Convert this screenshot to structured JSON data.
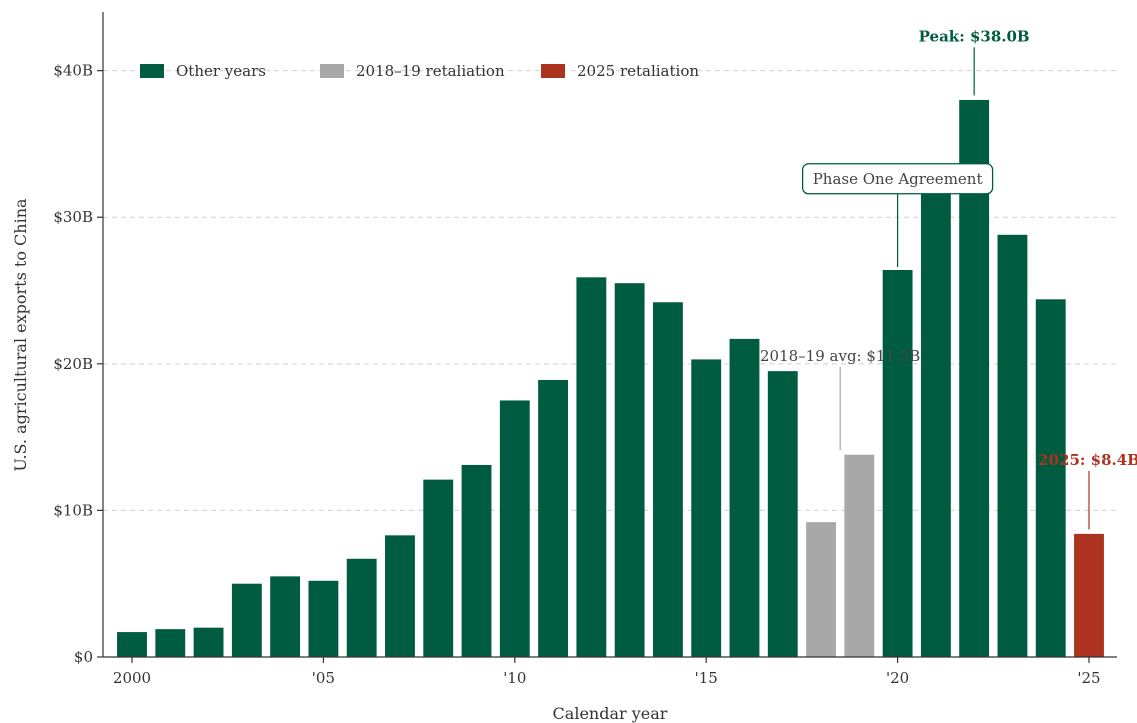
{
  "chart_data": {
    "type": "bar",
    "xlabel": "Calendar year",
    "ylabel": "U.S. agricultural exports to China",
    "ylim": [
      0,
      44
    ],
    "y_ticks": [
      {
        "value": 0,
        "label": "$0"
      },
      {
        "value": 10,
        "label": "$10B"
      },
      {
        "value": 20,
        "label": "$20B"
      },
      {
        "value": 30,
        "label": "$30B"
      },
      {
        "value": 40,
        "label": "$40B"
      }
    ],
    "x_ticks": [
      {
        "year": 2000,
        "label": "2000"
      },
      {
        "year": 2005,
        "label": "'05"
      },
      {
        "year": 2010,
        "label": "'10"
      },
      {
        "year": 2015,
        "label": "'15"
      },
      {
        "year": 2020,
        "label": "'20"
      },
      {
        "year": 2025,
        "label": "'25"
      }
    ],
    "grid": "horizontal dashed",
    "legend_position": "top-left",
    "colors": {
      "other": "#005c40",
      "retaliation_2018": "#a8a8a8",
      "retaliation_2025": "#ac3320",
      "axis": "#333333",
      "grid": "#d0d0d0"
    },
    "series": [
      {
        "key": "other",
        "name": "Other years"
      },
      {
        "key": "retaliation_2018",
        "name": "2018–19 retaliation"
      },
      {
        "key": "retaliation_2025",
        "name": "2025 retaliation"
      }
    ],
    "bars": [
      {
        "year": 2000,
        "value": 1.7,
        "group": "other"
      },
      {
        "year": 2001,
        "value": 1.9,
        "group": "other"
      },
      {
        "year": 2002,
        "value": 2.0,
        "group": "other"
      },
      {
        "year": 2003,
        "value": 5.0,
        "group": "other"
      },
      {
        "year": 2004,
        "value": 5.5,
        "group": "other"
      },
      {
        "year": 2005,
        "value": 5.2,
        "group": "other"
      },
      {
        "year": 2006,
        "value": 6.7,
        "group": "other"
      },
      {
        "year": 2007,
        "value": 8.3,
        "group": "other"
      },
      {
        "year": 2008,
        "value": 12.1,
        "group": "other"
      },
      {
        "year": 2009,
        "value": 13.1,
        "group": "other"
      },
      {
        "year": 2010,
        "value": 17.5,
        "group": "other"
      },
      {
        "year": 2011,
        "value": 18.9,
        "group": "other"
      },
      {
        "year": 2012,
        "value": 25.9,
        "group": "other"
      },
      {
        "year": 2013,
        "value": 25.5,
        "group": "other"
      },
      {
        "year": 2014,
        "value": 24.2,
        "group": "other"
      },
      {
        "year": 2015,
        "value": 20.3,
        "group": "other"
      },
      {
        "year": 2016,
        "value": 21.7,
        "group": "other"
      },
      {
        "year": 2017,
        "value": 19.5,
        "group": "other"
      },
      {
        "year": 2018,
        "value": 9.2,
        "group": "retaliation_2018"
      },
      {
        "year": 2019,
        "value": 13.8,
        "group": "retaliation_2018"
      },
      {
        "year": 2020,
        "value": 26.4,
        "group": "other"
      },
      {
        "year": 2021,
        "value": 33.0,
        "group": "other"
      },
      {
        "year": 2022,
        "value": 38.0,
        "group": "other"
      },
      {
        "year": 2023,
        "value": 28.8,
        "group": "other"
      },
      {
        "year": 2024,
        "value": 24.4,
        "group": "other"
      },
      {
        "year": 2025,
        "value": 8.4,
        "group": "retaliation_2025"
      }
    ],
    "annotations": [
      {
        "name": "annotation-peak",
        "text": "Peak: $38.0B",
        "x": 2022,
        "y_top": 42,
        "y_bottom": 38.3,
        "style": "bold",
        "color_key": "other"
      },
      {
        "name": "annotation-phase-one",
        "text": "Phase One Agreement",
        "x": 2020,
        "y_top": 31.6,
        "y_bottom": 26.6,
        "style": "box",
        "color_key": "other"
      },
      {
        "name": "annotation-2018-19-avg",
        "text": "2018–19 avg: $11.5B",
        "x": 2018.5,
        "y_top": 20.2,
        "y_bottom": 14.1,
        "style": "plain",
        "color_key": "retaliation_2018"
      },
      {
        "name": "annotation-2025",
        "text": "2025: $8.4B",
        "x": 2025,
        "y_top": 13.1,
        "y_bottom": 8.7,
        "style": "bold",
        "color_key": "retaliation_2025"
      }
    ]
  }
}
